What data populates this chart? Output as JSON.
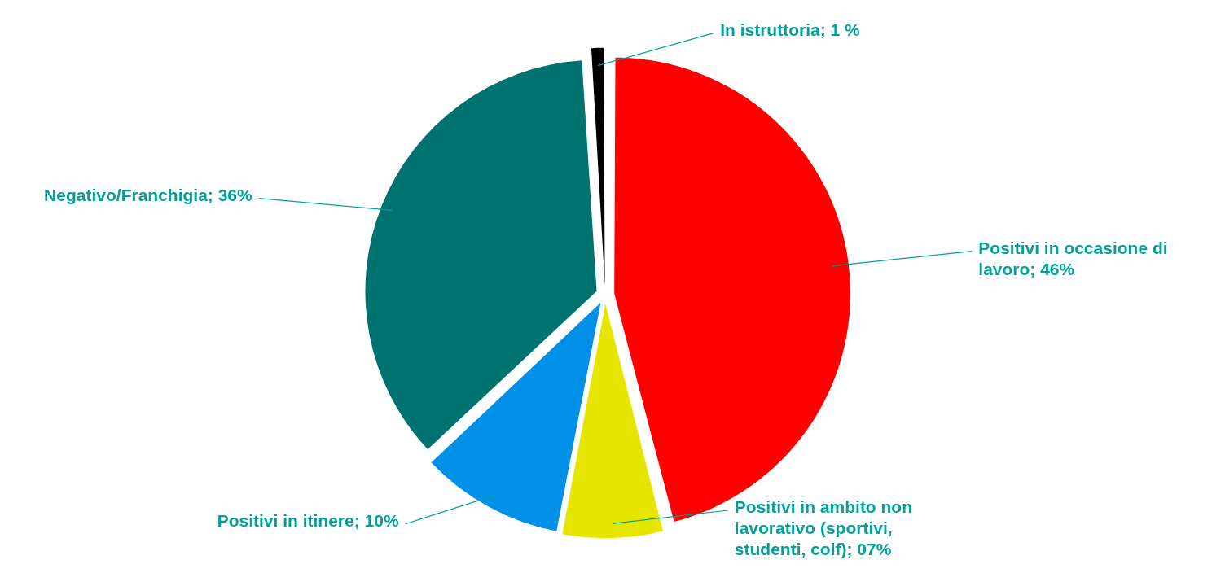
{
  "chart_data": {
    "type": "pie",
    "categories": [
      "Positivi in occasione di lavoro",
      "Positivi in ambito non lavorativo (sportivi, studenti, colf)",
      "Positivi in itinere",
      "Negativo/Franchigia",
      "In istruttoria"
    ],
    "values": [
      46,
      7,
      10,
      36,
      1
    ],
    "value_labels": [
      "46%",
      "07%",
      "10%",
      "36%",
      "1 %"
    ],
    "colors": [
      "#ff0000",
      "#e5e500",
      "#0090e8",
      "#007370",
      "#000000"
    ],
    "legend": false
  }
}
